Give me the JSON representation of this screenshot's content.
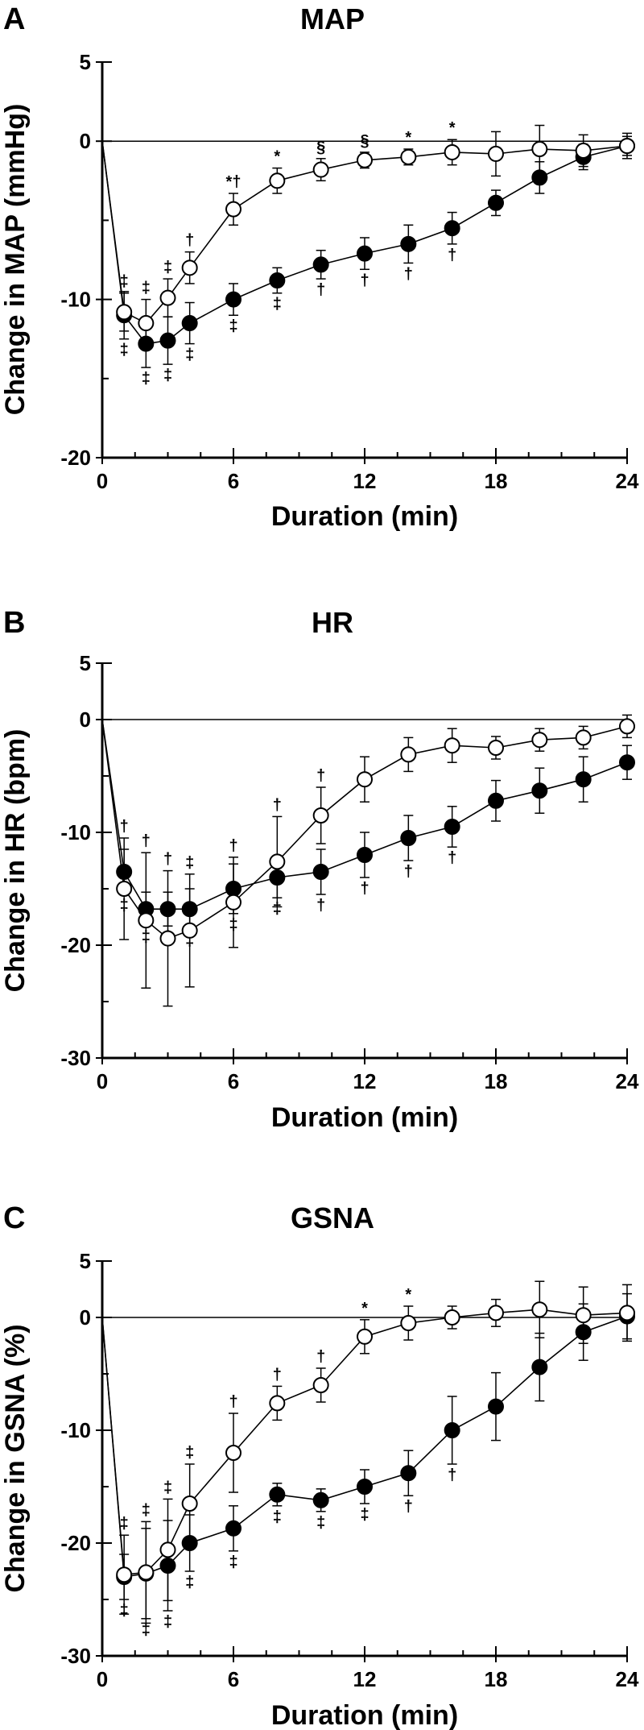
{
  "chart_data": [
    {
      "type": "line",
      "panel_label": "A",
      "title": "MAP",
      "xlabel": "Duration (min)",
      "ylabel": "Change in MAP (mmHg)",
      "xlim": [
        0,
        24
      ],
      "ylim": [
        -20,
        5
      ],
      "xticks": [
        0,
        6,
        12,
        18,
        24
      ],
      "yticks": [
        -20,
        -10,
        0,
        5
      ],
      "grid": false,
      "series": [
        {
          "style": "filled",
          "x": [
            0,
            1,
            2,
            3,
            4,
            6,
            8,
            10,
            12,
            14,
            16,
            18,
            20,
            22,
            24
          ],
          "y": [
            0,
            -11.0,
            -12.8,
            -12.6,
            -11.5,
            -10.0,
            -8.8,
            -7.8,
            -7.1,
            -6.5,
            -5.5,
            -3.9,
            -2.3,
            -1.0,
            -0.3
          ],
          "err": [
            0,
            1.5,
            1.5,
            1.5,
            1.3,
            1.0,
            0.8,
            0.9,
            1.0,
            1.2,
            1.0,
            0.8,
            1.0,
            0.8,
            0.6
          ],
          "sig": [
            "",
            "‡",
            "‡",
            "‡",
            "‡",
            "‡",
            "‡",
            "†",
            "†",
            "†",
            "†",
            "",
            "",
            "",
            ""
          ]
        },
        {
          "style": "open",
          "x": [
            0,
            1,
            2,
            3,
            4,
            6,
            8,
            10,
            12,
            14,
            16,
            18,
            20,
            22,
            24
          ],
          "y": [
            0,
            -10.8,
            -11.5,
            -9.9,
            -8.0,
            -4.3,
            -2.5,
            -1.8,
            -1.2,
            -1.0,
            -0.7,
            -0.8,
            -0.5,
            -0.6,
            -0.3
          ],
          "err": [
            0,
            1.2,
            1.5,
            1.2,
            1.0,
            1.0,
            0.8,
            0.7,
            0.5,
            0.5,
            0.8,
            1.4,
            1.5,
            1.0,
            0.8
          ],
          "sig": [
            "",
            "‡",
            "‡",
            "‡",
            "†",
            "*†",
            "*",
            "§",
            "§",
            "*",
            "*",
            "",
            "",
            "",
            ""
          ]
        }
      ]
    },
    {
      "type": "line",
      "panel_label": "B",
      "title": "HR",
      "xlabel": "Duration (min)",
      "ylabel": "Change in HR (bpm)",
      "xlim": [
        0,
        24
      ],
      "ylim": [
        -30,
        5
      ],
      "xticks": [
        0,
        6,
        12,
        18,
        24
      ],
      "yticks": [
        -30,
        -20,
        -10,
        0,
        5
      ],
      "grid": false,
      "series": [
        {
          "style": "filled",
          "x": [
            0,
            1,
            2,
            3,
            4,
            6,
            8,
            10,
            12,
            14,
            16,
            18,
            20,
            22,
            24
          ],
          "y": [
            0,
            -13.5,
            -16.8,
            -16.8,
            -16.8,
            -15.0,
            -14.0,
            -13.5,
            -12.0,
            -10.5,
            -9.5,
            -7.2,
            -6.3,
            -5.3,
            -3.8
          ],
          "err": [
            0,
            2.0,
            1.5,
            1.5,
            1.8,
            2.2,
            1.8,
            2.0,
            2.0,
            2.0,
            1.8,
            1.8,
            2.0,
            2.0,
            1.5
          ],
          "sig": [
            "",
            "‡",
            "‡",
            "‡",
            "‡",
            "‡",
            "‡",
            "†",
            "†",
            "†",
            "†",
            "",
            "",
            "",
            ""
          ]
        },
        {
          "style": "open",
          "x": [
            0,
            1,
            2,
            3,
            4,
            6,
            8,
            10,
            12,
            14,
            16,
            18,
            20,
            22,
            24
          ],
          "y": [
            0,
            -15.0,
            -17.8,
            -19.4,
            -18.7,
            -16.2,
            -12.6,
            -8.5,
            -5.3,
            -3.1,
            -2.3,
            -2.5,
            -1.8,
            -1.6,
            -0.6
          ],
          "err": [
            0,
            4.5,
            6.0,
            6.0,
            5.0,
            4.0,
            4.0,
            2.5,
            2.0,
            1.5,
            1.5,
            1.0,
            1.0,
            1.0,
            1.0
          ],
          "sig": [
            "",
            "†",
            "†",
            "†",
            "‡",
            "†",
            "†",
            "†",
            "",
            "",
            "",
            "",
            "",
            "",
            ""
          ]
        }
      ]
    },
    {
      "type": "line",
      "panel_label": "C",
      "title": "GSNA",
      "xlabel": "Duration (min)",
      "ylabel": "Change in GSNA (%)",
      "xlim": [
        0,
        24
      ],
      "ylim": [
        -30,
        5
      ],
      "xticks": [
        0,
        6,
        12,
        18,
        24
      ],
      "yticks": [
        -30,
        -20,
        -10,
        0,
        5
      ],
      "grid": false,
      "series": [
        {
          "style": "filled",
          "x": [
            0,
            1,
            2,
            3,
            4,
            6,
            8,
            10,
            12,
            14,
            16,
            18,
            20,
            22,
            24
          ],
          "y": [
            0,
            -23.0,
            -22.7,
            -22.0,
            -20.0,
            -18.7,
            -15.7,
            -16.2,
            -15.0,
            -13.8,
            -10.0,
            -7.9,
            -4.4,
            -1.3,
            0.1
          ],
          "err": [
            0,
            2.0,
            4.0,
            4.0,
            2.5,
            2.0,
            1.0,
            1.0,
            1.5,
            2.0,
            3.0,
            3.0,
            3.0,
            2.5,
            2.0
          ],
          "sig": [
            "",
            "‡",
            "‡",
            "‡",
            "‡",
            "‡",
            "‡",
            "‡",
            "‡",
            "†",
            "†",
            "",
            "",
            "",
            ""
          ]
        },
        {
          "style": "open",
          "x": [
            0,
            1,
            2,
            3,
            4,
            6,
            8,
            10,
            12,
            14,
            16,
            18,
            20,
            22,
            24
          ],
          "y": [
            0,
            -22.8,
            -22.6,
            -20.6,
            -16.5,
            -12.0,
            -7.6,
            -6.0,
            -1.7,
            -0.5,
            0.0,
            0.4,
            0.7,
            0.2,
            0.4
          ],
          "err": [
            0,
            3.5,
            4.5,
            4.5,
            3.5,
            3.5,
            1.5,
            1.5,
            1.5,
            1.5,
            1.0,
            1.2,
            2.5,
            2.5,
            2.5
          ],
          "sig": [
            "",
            "‡",
            "‡",
            "‡",
            "‡",
            "†",
            "†",
            "†",
            "*",
            "*",
            "",
            "",
            "",
            "",
            ""
          ]
        }
      ]
    }
  ]
}
